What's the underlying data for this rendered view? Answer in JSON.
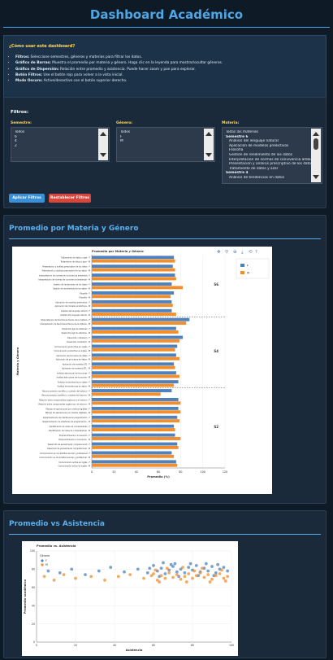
{
  "app": {
    "title": "Dashboard Académico"
  },
  "help": {
    "title": "¿Cómo usar este dashboard?",
    "items": [
      {
        "label": "Filtros:",
        "text": "Seleccione semestres, géneros y materias para filtrar los datos."
      },
      {
        "label": "Gráfico de Barras:",
        "text": "Muestra el promedio por materia y género. Haga clic en la leyenda para mostrar/ocultar géneros."
      },
      {
        "label": "Gráfico de Dispersión:",
        "text": "Relación entre promedio y asistencia. Puede hacer zoom y pan para explorar."
      },
      {
        "label": "Botón Filtros:",
        "text": "Use el botón rojo para volver a la vista inicial."
      },
      {
        "label": "Modo Oscuro:",
        "text": "Active/desactive con el botón superior derecho."
      }
    ]
  },
  "filters": {
    "title": "Filtros:",
    "semestre": {
      "label": "Semestre:",
      "options": [
        "Todos",
        "6",
        "4",
        "2"
      ]
    },
    "genero": {
      "label": "Género:",
      "options": [
        "Todos",
        "F",
        "M"
      ]
    },
    "materia": {
      "label": "Materia:",
      "options": [
        "Todas las materias",
        "Semestre 6",
        "Análisis del lenguaje natural",
        "Aplicación de modelos predictivos",
        "Filosofía",
        "Gestión de rendimiento de los datos",
        "Interpretación de normas de convivencia ambiental",
        "Presentación y análisis prescriptivo de los datos",
        "Tratamiento de datos y azar",
        "Semestre 4",
        "Análisis de tendencias en datos"
      ]
    },
    "apply_label": "Aplicar Filtros",
    "reset_label": "Restablecer Filtros",
    "apply_color": "#3a8fd6",
    "reset_color": "#d9453b"
  },
  "bar_section": {
    "title": "Promedio por Materia y Género"
  },
  "scatter_section": {
    "title": "Promedio vs Asistencia"
  },
  "chart_data": [
    {
      "type": "bar",
      "orientation": "horizontal",
      "title": "Promedio por Materia y Género",
      "xlabel": "Promedio (%)",
      "ylabel": "Materia y Género",
      "xlim": [
        0,
        120
      ],
      "xticks": [
        0,
        20,
        40,
        60,
        80,
        100,
        120
      ],
      "legend_position": "top-right",
      "colors": {
        "F": "#4f81bd",
        "M": "#f28e2b"
      },
      "groups": [
        {
          "name": "S6",
          "categories": [
            "Tratamiento de datos y azar",
            "Presentación y análisis prescriptivo de los datos",
            "Interpretación de normas de convivencia ambiental",
            "Gestión de rendimiento de los datos",
            "Filosofía",
            "Aplicación de modelos predictivos",
            "Análisis del lenguaje natural"
          ]
        },
        {
          "name": "S4",
          "categories": [
            "Interpretación de fenómenos físicos de la materia",
            "Desarrollo ágil de sistemas",
            "Desarrollo ciudadano",
            "Comunicación productiva en inglés",
            "Aplicación de principios de datos",
            "Aplicación de modelos ETL",
            "Análisis estructural de funciones",
            "Análisis de tendencias en datos"
          ]
        },
        {
          "name": "S2",
          "categories": [
            "Reconocimiento científico y cuidado del entorno",
            "Relación entre componentes orgánicos y el entorno",
            "Manejo de aplicaciones por medios digitales",
            "Implementación de interfaces de programación",
            "Identificación de redes de computadoras",
            "Emprendimiento e innovación",
            "Desarrollo de pensamiento computacional",
            "Comunicación en los ámbitos escolar y profesional",
            "Comunicación activa en inglés"
          ]
        }
      ],
      "series": [
        {
          "name": "F",
          "values": [
            74,
            73,
            75,
            72,
            74,
            72,
            72,
            88,
            76,
            82,
            77,
            76,
            74,
            76,
            78,
            72,
            78,
            78,
            77,
            74,
            75,
            77,
            72,
            76
          ]
        },
        {
          "name": "M",
          "values": [
            75,
            75,
            76,
            82,
            71,
            73,
            76,
            85,
            78,
            79,
            75,
            79,
            75,
            79,
            74,
            62,
            80,
            80,
            79,
            75,
            80,
            78,
            74,
            77
          ]
        }
      ]
    },
    {
      "type": "scatter",
      "title": "Promedio vs. Asistencia",
      "xlabel": "Asistencia",
      "ylabel": "Promedio académico",
      "xlim": [
        0,
        100
      ],
      "ylim": [
        0,
        100
      ],
      "xticks": [
        0,
        20,
        40,
        60,
        80,
        100
      ],
      "yticks": [
        0,
        20,
        40,
        60,
        80,
        100
      ],
      "legend_title": "Género",
      "legend_position": "top-left",
      "colors": {
        "F": "#4f81bd",
        "M": "#f28e2b"
      },
      "series": [
        {
          "name": "F",
          "points": [
            [
              6,
              78
            ],
            [
              12,
              76
            ],
            [
              18,
              80
            ],
            [
              25,
              74
            ],
            [
              32,
              78
            ],
            [
              38,
              82
            ],
            [
              45,
              77
            ],
            [
              52,
              80
            ],
            [
              57,
              76
            ],
            [
              60,
              84
            ],
            [
              62,
              78
            ],
            [
              64,
              81
            ],
            [
              66,
              75
            ],
            [
              68,
              79
            ],
            [
              70,
              83
            ],
            [
              72,
              77
            ],
            [
              74,
              80
            ],
            [
              76,
              76
            ],
            [
              78,
              82
            ],
            [
              80,
              79
            ],
            [
              82,
              84
            ],
            [
              84,
              77
            ],
            [
              86,
              81
            ],
            [
              88,
              78
            ],
            [
              90,
              83
            ],
            [
              92,
              76
            ],
            [
              94,
              80
            ],
            [
              96,
              82
            ],
            [
              98,
              78
            ],
            [
              65,
              87
            ],
            [
              71,
              86
            ],
            [
              79,
              86
            ],
            [
              87,
              86
            ],
            [
              93,
              85
            ],
            [
              63,
              72
            ],
            [
              73,
              72
            ],
            [
              83,
              73
            ],
            [
              91,
              73
            ],
            [
              58,
              81
            ],
            [
              69,
              85
            ]
          ]
        },
        {
          "name": "M",
          "points": [
            [
              4,
              72
            ],
            [
              9,
              68
            ],
            [
              14,
              74
            ],
            [
              20,
              70
            ],
            [
              28,
              72
            ],
            [
              35,
              68
            ],
            [
              42,
              72
            ],
            [
              48,
              74
            ],
            [
              55,
              70
            ],
            [
              60,
              75
            ],
            [
              62,
              68
            ],
            [
              64,
              73
            ],
            [
              66,
              70
            ],
            [
              68,
              76
            ],
            [
              70,
              71
            ],
            [
              72,
              74
            ],
            [
              74,
              69
            ],
            [
              76,
              72
            ],
            [
              78,
              75
            ],
            [
              80,
              70
            ],
            [
              82,
              73
            ],
            [
              84,
              76
            ],
            [
              86,
              71
            ],
            [
              88,
              74
            ],
            [
              90,
              69
            ],
            [
              92,
              73
            ],
            [
              94,
              75
            ],
            [
              96,
              70
            ],
            [
              98,
              72
            ],
            [
              61,
              79
            ],
            [
              67,
              81
            ],
            [
              75,
              82
            ],
            [
              85,
              81
            ],
            [
              95,
              79
            ],
            [
              63,
              66
            ],
            [
              77,
              66
            ],
            [
              89,
              66
            ],
            [
              97,
              67
            ],
            [
              59,
              73
            ],
            [
              81,
              78
            ]
          ]
        }
      ]
    }
  ]
}
